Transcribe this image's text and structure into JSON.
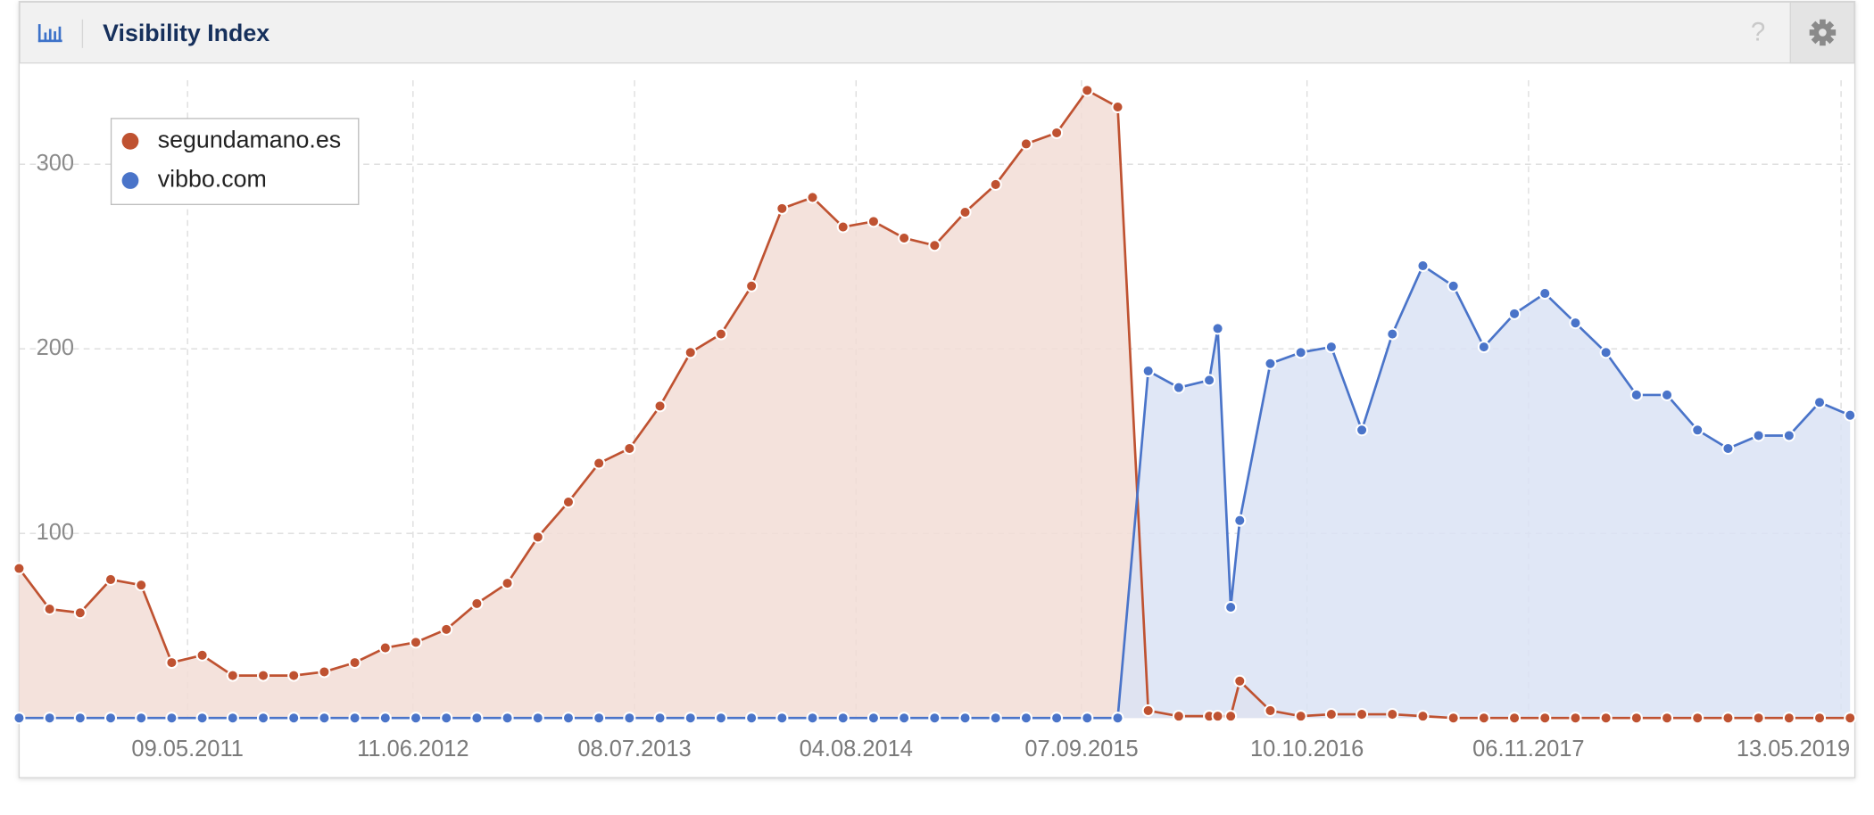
{
  "help_icon": "?",
  "chart_data": {
    "type": "area",
    "title": "Visibility Index",
    "x": [
      "15.07.2010",
      "07.09.2010",
      "31.10.2010",
      "24.12.2010",
      "16.02.2011",
      "11.04.2011",
      "04.06.2011",
      "28.07.2011",
      "20.09.2011",
      "13.11.2011",
      "06.01.2012",
      "29.02.2012",
      "23.04.2012",
      "16.06.2012",
      "09.08.2012",
      "02.10.2012",
      "25.11.2012",
      "18.01.2013",
      "13.03.2013",
      "06.05.2013",
      "29.06.2013",
      "22.08.2013",
      "15.10.2013",
      "08.12.2013",
      "31.01.2014",
      "26.03.2014",
      "19.05.2014",
      "12.07.2014",
      "04.09.2014",
      "28.10.2014",
      "21.12.2014",
      "13.02.2015",
      "08.04.2015",
      "01.06.2015",
      "25.07.2015",
      "17.09.2015",
      "10.11.2015",
      "03.01.2016",
      "26.02.2016",
      "20.04.2016",
      "05.05.2016",
      "28.05.2016",
      "13.06.2016",
      "06.08.2016",
      "29.09.2016",
      "22.11.2016",
      "15.01.2017",
      "10.03.2017",
      "03.05.2017",
      "26.06.2017",
      "19.08.2017",
      "12.10.2017",
      "05.12.2017",
      "28.01.2018",
      "23.03.2018",
      "16.05.2018",
      "09.07.2018",
      "01.09.2018",
      "25.10.2018",
      "18.12.2018",
      "10.02.2019",
      "05.04.2019",
      "29.05.2019"
    ],
    "series": [
      {
        "name": "segundamano.es",
        "color": "#bf5231",
        "fill": "#f2ddd6",
        "values": [
          81,
          59,
          57,
          75,
          72,
          30,
          34,
          23,
          23,
          23,
          25,
          30,
          38,
          41,
          48,
          62,
          73,
          98,
          117,
          138,
          146,
          169,
          198,
          208,
          234,
          276,
          282,
          266,
          269,
          260,
          256,
          274,
          289,
          311,
          317,
          340,
          331,
          4,
          1,
          1,
          1,
          1,
          20,
          4,
          1,
          2,
          2,
          2,
          1,
          0,
          0,
          0,
          0,
          0,
          0,
          0,
          0,
          0,
          0,
          0,
          0,
          0,
          0
        ]
      },
      {
        "name": "vibbo.com",
        "color": "#4a74c9",
        "fill": "#dbe3f5",
        "values": [
          0,
          0,
          0,
          0,
          0,
          0,
          0,
          0,
          0,
          0,
          0,
          0,
          0,
          0,
          0,
          0,
          0,
          0,
          0,
          0,
          0,
          0,
          0,
          0,
          0,
          0,
          0,
          0,
          0,
          0,
          0,
          0,
          0,
          0,
          0,
          0,
          0,
          188,
          179,
          183,
          211,
          60,
          107,
          192,
          198,
          201,
          156,
          208,
          245,
          234,
          201,
          219,
          230,
          214,
          198,
          175,
          175,
          156,
          146,
          153,
          153,
          171,
          164
        ]
      }
    ],
    "xlim": [
      "15.07.2010",
      "29.05.2019"
    ],
    "xticks": [
      "09.05.2011",
      "11.06.2012",
      "08.07.2013",
      "04.08.2014",
      "07.09.2015",
      "10.10.2016",
      "06.11.2017",
      "13.05.2019"
    ],
    "ylim": [
      0,
      350
    ],
    "yticks": [
      100,
      200,
      300
    ],
    "grid": true,
    "legend": "top-left"
  }
}
